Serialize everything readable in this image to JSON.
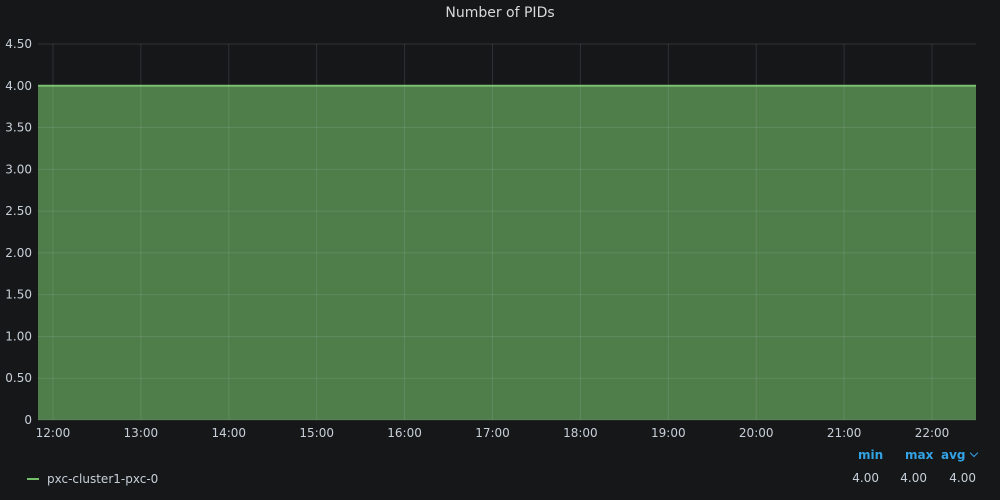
{
  "panel": {
    "title": "Number of PIDs"
  },
  "chart_data": {
    "type": "area",
    "title": "Number of PIDs",
    "xlabel": "",
    "ylabel": "",
    "x_ticks": [
      "12:00",
      "13:00",
      "14:00",
      "15:00",
      "16:00",
      "17:00",
      "18:00",
      "19:00",
      "20:00",
      "21:00",
      "22:00"
    ],
    "y_ticks": [
      "0",
      "0.50",
      "1.00",
      "1.50",
      "2.00",
      "2.50",
      "3.00",
      "3.50",
      "4.00",
      "4.50"
    ],
    "ylim": [
      0,
      4.5
    ],
    "xlim_hours": [
      11.83,
      22.5
    ],
    "grid": true,
    "series": [
      {
        "name": "pxc-cluster1-pxc-0",
        "color": "#73bf69",
        "x": [
          11.83,
          22.5
        ],
        "y": [
          4.0,
          4.0
        ]
      }
    ]
  },
  "legend": {
    "columns": [
      {
        "label": "min"
      },
      {
        "label": "max"
      },
      {
        "label": "avg"
      }
    ],
    "rows": [
      {
        "name": "pxc-cluster1-pxc-0",
        "min": "4.00",
        "max": "4.00",
        "avg": "4.00"
      }
    ]
  }
}
